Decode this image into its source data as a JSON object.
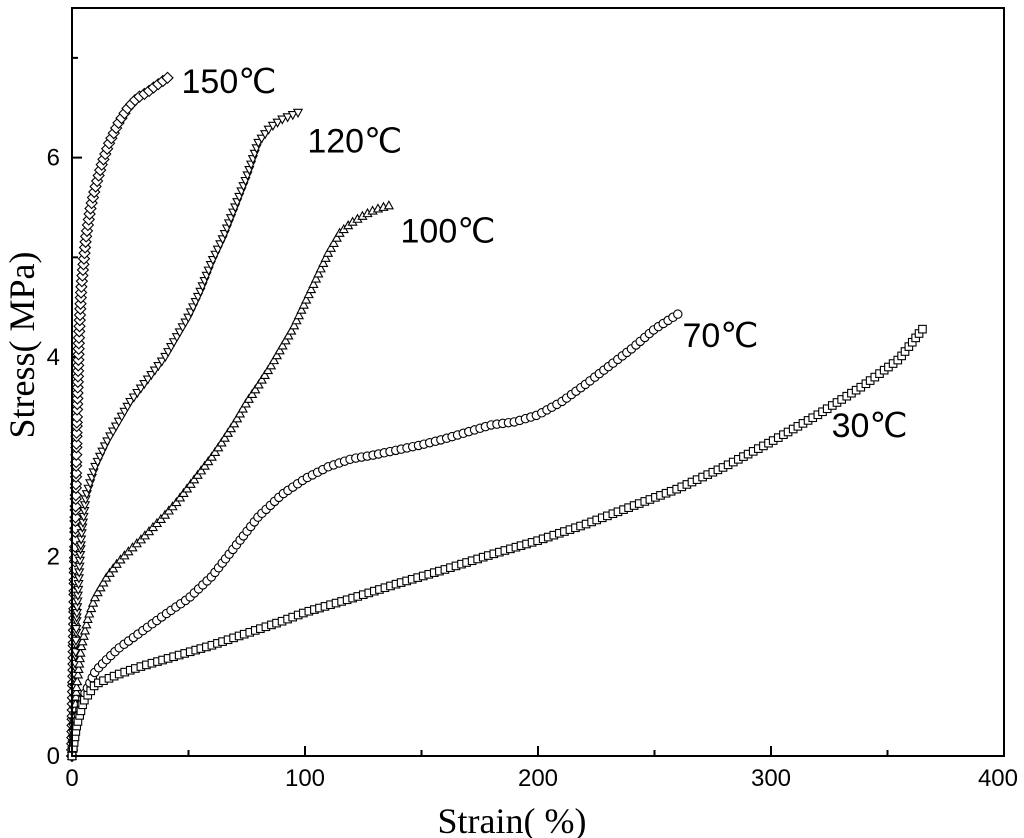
{
  "chart_data": {
    "type": "line",
    "xlabel": "Strain(  %)",
    "ylabel": "Stress(  MPa)",
    "xlim": [
      0,
      400
    ],
    "ylim": [
      0,
      7.5
    ],
    "x_ticks": [
      0,
      100,
      200,
      300,
      400
    ],
    "y_ticks": [
      0,
      2,
      4,
      6
    ],
    "grid": false,
    "legend": "inline labels at line ends",
    "series": [
      {
        "name": "150℃",
        "marker": "diamond",
        "points": [
          [
            0,
            0
          ],
          [
            1,
            1.5
          ],
          [
            2,
            3.3
          ],
          [
            3,
            4.2
          ],
          [
            4,
            4.7
          ],
          [
            6,
            5.2
          ],
          [
            8,
            5.5
          ],
          [
            10,
            5.7
          ],
          [
            13,
            5.95
          ],
          [
            16,
            6.15
          ],
          [
            20,
            6.35
          ],
          [
            24,
            6.5
          ],
          [
            28,
            6.6
          ],
          [
            32,
            6.65
          ],
          [
            36,
            6.72
          ],
          [
            41,
            6.8
          ]
        ]
      },
      {
        "name": "120℃",
        "marker": "triangle-down",
        "points": [
          [
            0,
            0
          ],
          [
            1,
            0.6
          ],
          [
            2,
            1.4
          ],
          [
            4,
            2.2
          ],
          [
            6,
            2.6
          ],
          [
            10,
            2.9
          ],
          [
            15,
            3.15
          ],
          [
            20,
            3.35
          ],
          [
            25,
            3.55
          ],
          [
            30,
            3.7
          ],
          [
            35,
            3.85
          ],
          [
            40,
            4.0
          ],
          [
            45,
            4.2
          ],
          [
            50,
            4.4
          ],
          [
            55,
            4.65
          ],
          [
            60,
            4.95
          ],
          [
            65,
            5.2
          ],
          [
            70,
            5.5
          ],
          [
            75,
            5.8
          ],
          [
            80,
            6.15
          ],
          [
            85,
            6.3
          ],
          [
            90,
            6.38
          ],
          [
            97,
            6.45
          ]
        ]
      },
      {
        "name": "100℃",
        "marker": "triangle-up",
        "points": [
          [
            0,
            0
          ],
          [
            2,
            0.7
          ],
          [
            4,
            1.1
          ],
          [
            7,
            1.4
          ],
          [
            10,
            1.6
          ],
          [
            15,
            1.8
          ],
          [
            20,
            1.95
          ],
          [
            25,
            2.07
          ],
          [
            30,
            2.18
          ],
          [
            35,
            2.3
          ],
          [
            40,
            2.42
          ],
          [
            45,
            2.55
          ],
          [
            50,
            2.7
          ],
          [
            55,
            2.85
          ],
          [
            60,
            3.0
          ],
          [
            65,
            3.17
          ],
          [
            70,
            3.35
          ],
          [
            75,
            3.55
          ],
          [
            80,
            3.72
          ],
          [
            85,
            3.9
          ],
          [
            90,
            4.1
          ],
          [
            95,
            4.3
          ],
          [
            100,
            4.55
          ],
          [
            105,
            4.8
          ],
          [
            110,
            5.05
          ],
          [
            115,
            5.25
          ],
          [
            120,
            5.35
          ],
          [
            125,
            5.42
          ],
          [
            130,
            5.48
          ],
          [
            136,
            5.52
          ]
        ]
      },
      {
        "name": "70℃",
        "marker": "circle",
        "points": [
          [
            0,
            0
          ],
          [
            2,
            0.35
          ],
          [
            5,
            0.6
          ],
          [
            10,
            0.85
          ],
          [
            15,
            0.97
          ],
          [
            20,
            1.08
          ],
          [
            30,
            1.25
          ],
          [
            40,
            1.42
          ],
          [
            50,
            1.58
          ],
          [
            60,
            1.8
          ],
          [
            70,
            2.1
          ],
          [
            80,
            2.4
          ],
          [
            90,
            2.62
          ],
          [
            100,
            2.78
          ],
          [
            110,
            2.9
          ],
          [
            120,
            2.98
          ],
          [
            130,
            3.02
          ],
          [
            140,
            3.07
          ],
          [
            150,
            3.12
          ],
          [
            160,
            3.18
          ],
          [
            170,
            3.25
          ],
          [
            180,
            3.32
          ],
          [
            190,
            3.35
          ],
          [
            200,
            3.42
          ],
          [
            210,
            3.55
          ],
          [
            220,
            3.72
          ],
          [
            230,
            3.9
          ],
          [
            240,
            4.08
          ],
          [
            250,
            4.28
          ],
          [
            260,
            4.43
          ]
        ]
      },
      {
        "name": "30℃",
        "marker": "square",
        "points": [
          [
            0,
            0
          ],
          [
            2,
            0.3
          ],
          [
            5,
            0.55
          ],
          [
            10,
            0.72
          ],
          [
            20,
            0.82
          ],
          [
            30,
            0.9
          ],
          [
            40,
            0.97
          ],
          [
            50,
            1.04
          ],
          [
            60,
            1.11
          ],
          [
            70,
            1.19
          ],
          [
            80,
            1.27
          ],
          [
            90,
            1.35
          ],
          [
            100,
            1.44
          ],
          [
            120,
            1.58
          ],
          [
            140,
            1.73
          ],
          [
            160,
            1.87
          ],
          [
            180,
            2.02
          ],
          [
            200,
            2.16
          ],
          [
            220,
            2.32
          ],
          [
            240,
            2.5
          ],
          [
            260,
            2.68
          ],
          [
            280,
            2.9
          ],
          [
            300,
            3.15
          ],
          [
            320,
            3.42
          ],
          [
            340,
            3.72
          ],
          [
            355,
            3.98
          ],
          [
            365,
            4.28
          ]
        ]
      }
    ]
  }
}
